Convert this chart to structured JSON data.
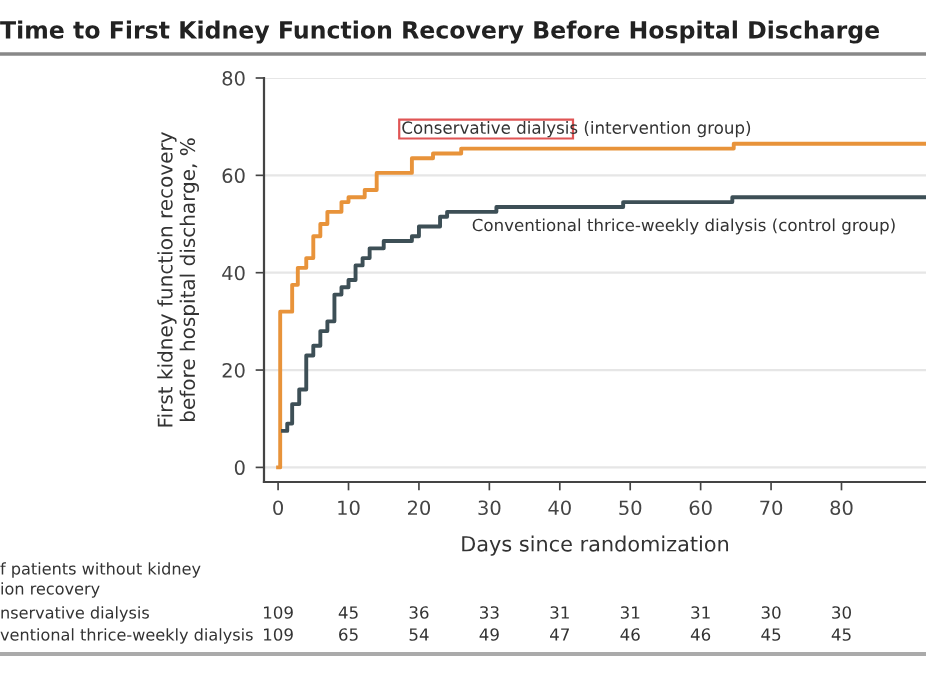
{
  "chart_data": {
    "type": "step",
    "title": "Time to First Kidney Function Recovery Before Hospital Discharge",
    "xlabel": "Days since randomization",
    "ylabel": "First kidney function recovery\nbefore hospital discharge, %",
    "xlim": [
      -2,
      92
    ],
    "xticks": [
      0,
      10,
      20,
      30,
      40,
      50,
      60,
      70,
      80
    ],
    "ylim": [
      -3,
      80
    ],
    "yticks": [
      0,
      20,
      40,
      60,
      80
    ],
    "grid": "y",
    "legend": false,
    "series": [
      {
        "name": "Conservative dialysis (intervention group)",
        "color": "#e8933a",
        "x": [
          0,
          0.3,
          2,
          2.8,
          4,
          5,
          6,
          7,
          9,
          10,
          12.3,
          14,
          19,
          22,
          26,
          64.7,
          92
        ],
        "values": [
          0,
          32,
          37.5,
          41,
          43,
          47.5,
          50,
          52.5,
          54.5,
          55.5,
          57,
          60.5,
          63.5,
          64.5,
          65.5,
          66.5,
          66.5
        ]
      },
      {
        "name": "Conventional thrice-weekly dialysis (control group)",
        "color": "#3d4f56",
        "x": [
          0.7,
          1.3,
          2,
          3,
          4,
          5,
          6,
          7,
          8,
          9,
          10,
          11,
          12,
          13,
          15,
          19,
          20,
          23,
          24,
          31,
          49,
          64.5,
          92
        ],
        "values": [
          7.5,
          9,
          13,
          16,
          23,
          25,
          28,
          30,
          35.5,
          37,
          38.5,
          41.5,
          43,
          45,
          46.5,
          47.5,
          49.5,
          51.5,
          52.5,
          53.5,
          54.5,
          55.5,
          55.5
        ]
      }
    ],
    "annotations": [
      "f patients without kidney",
      "ion recovery",
      "nservative dialysis",
      "109",
      "45",
      "36",
      "33",
      "31",
      "31",
      "31",
      "30",
      "30",
      "ventional thrice-weekly dialysis",
      "109",
      "65",
      "54",
      "49",
      "47",
      "46",
      "46",
      "45",
      "45"
    ]
  }
}
